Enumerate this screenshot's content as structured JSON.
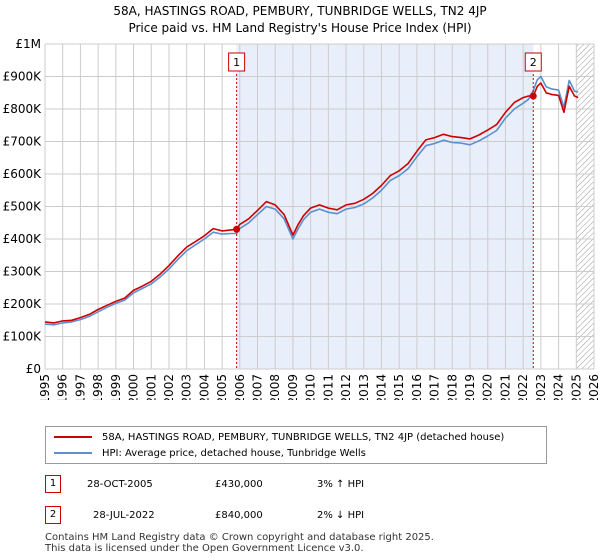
{
  "title_line1": "58A, HASTINGS ROAD, PEMBURY, TUNBRIDGE WELLS, TN2 4JP",
  "title_line2": "Price paid vs. HM Land Registry's House Price Index (HPI)",
  "colors": {
    "property": "#cc0000",
    "hpi": "#5b8fd0",
    "highlight": "#e8eefa",
    "grid": "#cccccc",
    "hatch": "#999999"
  },
  "chart_data": {
    "type": "line",
    "title": "58A, HASTINGS ROAD, PEMBURY, TUNBRIDGE WELLS, TN2 4JP",
    "subtitle": "Price paid vs. HM Land Registry's House Price Index (HPI)",
    "xlabel": "",
    "ylabel": "",
    "xlim": [
      1995,
      2026
    ],
    "ylim": [
      0,
      1000000
    ],
    "y_ticks": [
      {
        "value": 0,
        "label": "£0"
      },
      {
        "value": 100000,
        "label": "£100K"
      },
      {
        "value": 200000,
        "label": "£200K"
      },
      {
        "value": 300000,
        "label": "£300K"
      },
      {
        "value": 400000,
        "label": "£400K"
      },
      {
        "value": 500000,
        "label": "£500K"
      },
      {
        "value": 600000,
        "label": "£600K"
      },
      {
        "value": 700000,
        "label": "£700K"
      },
      {
        "value": 800000,
        "label": "£800K"
      },
      {
        "value": 900000,
        "label": "£900K"
      },
      {
        "value": 1000000,
        "label": "£1M"
      }
    ],
    "x_ticks": [
      "1995",
      "1996",
      "1997",
      "1998",
      "1999",
      "2000",
      "2001",
      "2002",
      "2003",
      "2004",
      "2005",
      "2006",
      "2007",
      "2008",
      "2009",
      "2010",
      "2011",
      "2012",
      "2013",
      "2014",
      "2015",
      "2016",
      "2017",
      "2018",
      "2019",
      "2020",
      "2021",
      "2022",
      "2023",
      "2024",
      "2025",
      "2026"
    ],
    "grid": true,
    "highlight_range": [
      2005.82,
      2022.57
    ],
    "future_hatch_from": 2025.0,
    "series": [
      {
        "name": "58A, HASTINGS ROAD, PEMBURY, TUNBRIDGE WELLS, TN2 4JP (detached house)",
        "color": "#cc0000",
        "x": [
          1995.0,
          1995.5,
          1996.0,
          1996.5,
          1997.0,
          1997.5,
          1998.0,
          1998.5,
          1999.0,
          1999.5,
          2000.0,
          2000.5,
          2001.0,
          2001.5,
          2002.0,
          2002.5,
          2003.0,
          2003.5,
          2004.0,
          2004.5,
          2005.0,
          2005.5,
          2005.82,
          2006.0,
          2006.5,
          2007.0,
          2007.5,
          2008.0,
          2008.5,
          2009.0,
          2009.3,
          2009.6,
          2010.0,
          2010.5,
          2011.0,
          2011.5,
          2012.0,
          2012.5,
          2013.0,
          2013.5,
          2014.0,
          2014.5,
          2015.0,
          2015.5,
          2016.0,
          2016.5,
          2017.0,
          2017.5,
          2018.0,
          2018.5,
          2019.0,
          2019.5,
          2020.0,
          2020.5,
          2021.0,
          2021.5,
          2022.0,
          2022.3,
          2022.57,
          2022.8,
          2023.0,
          2023.3,
          2023.6,
          2024.0,
          2024.3,
          2024.6,
          2024.9,
          2025.1
        ],
        "y": [
          145000,
          142000,
          148000,
          150000,
          158000,
          168000,
          183000,
          196000,
          208000,
          218000,
          242000,
          255000,
          270000,
          292000,
          318000,
          348000,
          375000,
          392000,
          410000,
          432000,
          425000,
          428000,
          430000,
          445000,
          462000,
          488000,
          515000,
          505000,
          475000,
          412000,
          445000,
          472000,
          495000,
          505000,
          495000,
          490000,
          505000,
          510000,
          522000,
          540000,
          565000,
          595000,
          610000,
          632000,
          670000,
          705000,
          712000,
          722000,
          715000,
          712000,
          708000,
          720000,
          735000,
          752000,
          790000,
          820000,
          835000,
          840000,
          840000,
          870000,
          880000,
          850000,
          845000,
          842000,
          790000,
          870000,
          840000,
          835000
        ]
      },
      {
        "name": "HPI: Average price, detached house, Tunbridge Wells",
        "color": "#5b8fd0",
        "x": [
          1995.0,
          1995.5,
          1996.0,
          1996.5,
          1997.0,
          1997.5,
          1998.0,
          1998.5,
          1999.0,
          1999.5,
          2000.0,
          2000.5,
          2001.0,
          2001.5,
          2002.0,
          2002.5,
          2003.0,
          2003.5,
          2004.0,
          2004.5,
          2005.0,
          2005.5,
          2005.82,
          2006.0,
          2006.5,
          2007.0,
          2007.5,
          2008.0,
          2008.5,
          2009.0,
          2009.3,
          2009.6,
          2010.0,
          2010.5,
          2011.0,
          2011.5,
          2012.0,
          2012.5,
          2013.0,
          2013.5,
          2014.0,
          2014.5,
          2015.0,
          2015.5,
          2016.0,
          2016.5,
          2017.0,
          2017.5,
          2018.0,
          2018.5,
          2019.0,
          2019.5,
          2020.0,
          2020.5,
          2021.0,
          2021.5,
          2022.0,
          2022.3,
          2022.57,
          2022.8,
          2023.0,
          2023.3,
          2023.6,
          2024.0,
          2024.3,
          2024.6,
          2024.9,
          2025.1
        ],
        "y": [
          138000,
          136000,
          142000,
          145000,
          152000,
          162000,
          176000,
          190000,
          202000,
          212000,
          234000,
          248000,
          262000,
          283000,
          308000,
          337000,
          364000,
          382000,
          400000,
          421000,
          415000,
          417000,
          417000,
          432000,
          450000,
          475000,
          500000,
          492000,
          462000,
          400000,
          432000,
          460000,
          482000,
          492000,
          482000,
          478000,
          492000,
          497000,
          508000,
          526000,
          550000,
          580000,
          595000,
          616000,
          653000,
          687000,
          694000,
          704000,
          697000,
          695000,
          690000,
          702000,
          717000,
          734000,
          772000,
          800000,
          818000,
          830000,
          857000,
          890000,
          900000,
          868000,
          862000,
          858000,
          805000,
          888000,
          855000,
          852000
        ]
      }
    ],
    "annotations": [
      {
        "label": "1",
        "x": 2005.82,
        "y": 430000
      },
      {
        "label": "2",
        "x": 2022.57,
        "y": 840000
      }
    ]
  },
  "legend": {
    "property_label": "58A, HASTINGS ROAD, PEMBURY, TUNBRIDGE WELLS, TN2 4JP (detached house)",
    "hpi_label": "HPI: Average price, detached house, Tunbridge Wells"
  },
  "sales": [
    {
      "num": "1",
      "date": "28-OCT-2005",
      "price": "£430,000",
      "hpi": "3% ↑ HPI"
    },
    {
      "num": "2",
      "date": "28-JUL-2022",
      "price": "£840,000",
      "hpi": "2% ↓ HPI"
    }
  ],
  "footer": {
    "line1": "Contains HM Land Registry data © Crown copyright and database right 2025.",
    "line2": "This data is licensed under the Open Government Licence v3.0."
  }
}
